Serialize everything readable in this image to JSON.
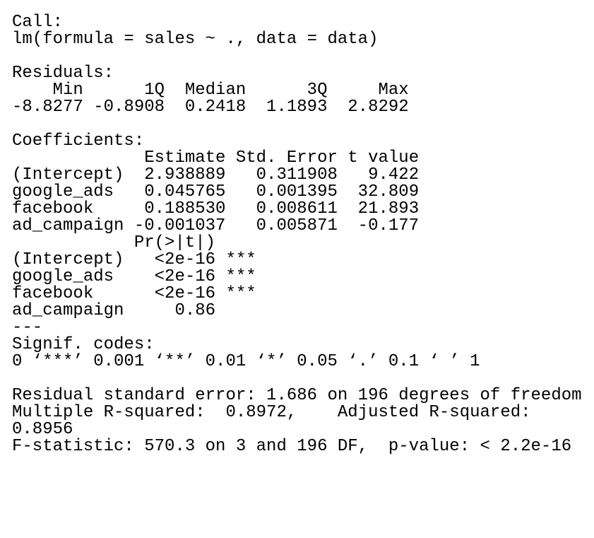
{
  "sections": [
    {
      "lines": [
        "Call:",
        "lm(formula = sales ~ ., data = data)"
      ]
    },
    {
      "lines": [
        "Residuals:",
        "    Min      1Q  Median      3Q     Max",
        "-8.8277 -0.8908  0.2418  1.1893  2.8292"
      ]
    },
    {
      "lines": [
        "Coefficients:",
        "             Estimate Std. Error t value",
        "(Intercept)  2.938889   0.311908   9.422",
        "google_ads   0.045765   0.001395  32.809",
        "facebook     0.188530   0.008611  21.893",
        "ad_campaign -0.001037   0.005871  -0.177",
        "            Pr(>|t|)",
        "(Intercept)   <2e-16 ***",
        "google_ads    <2e-16 ***",
        "facebook      <2e-16 ***",
        "ad_campaign     0.86",
        "---",
        "Signif. codes:",
        "0 ‘***’ 0.001 ‘**’ 0.01 ‘*’ 0.05 ‘.’ 0.1 ‘ ’ 1"
      ]
    },
    {
      "lines": [
        "Residual standard error: 1.686 on 196 degrees of freedom",
        "Multiple R-squared:  0.8972,    Adjusted R-squared:",
        "0.8956",
        "F-statistic: 570.3 on 3 and 196 DF,  p-value: < 2.2e-16"
      ]
    }
  ]
}
